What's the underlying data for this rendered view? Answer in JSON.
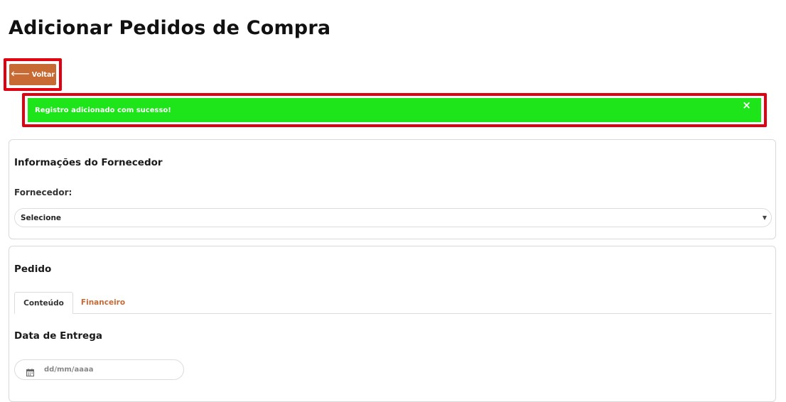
{
  "page": {
    "title": "Adicionar Pedidos de Compra"
  },
  "toolbar": {
    "back_icon": "arrow-left-icon",
    "back_label": "Voltar"
  },
  "alert": {
    "message": "Registro adicionado com sucesso!",
    "close_symbol": "×",
    "color": "#1de51a"
  },
  "supplier_section": {
    "title": "Informações do Fornecedor",
    "field_label": "Fornecedor:",
    "select_value": "Selecione"
  },
  "order_section": {
    "title": "Pedido",
    "tabs": [
      {
        "label": "Conteúdo",
        "active": true
      },
      {
        "label": "Financeiro",
        "active": false
      }
    ],
    "delivery_title": "Data de Entrega",
    "date_placeholder": "dd/mm/aaaa",
    "date_icon": "calendar-icon"
  },
  "colors": {
    "accent": "#c86a33",
    "highlight": "#e0000f"
  }
}
